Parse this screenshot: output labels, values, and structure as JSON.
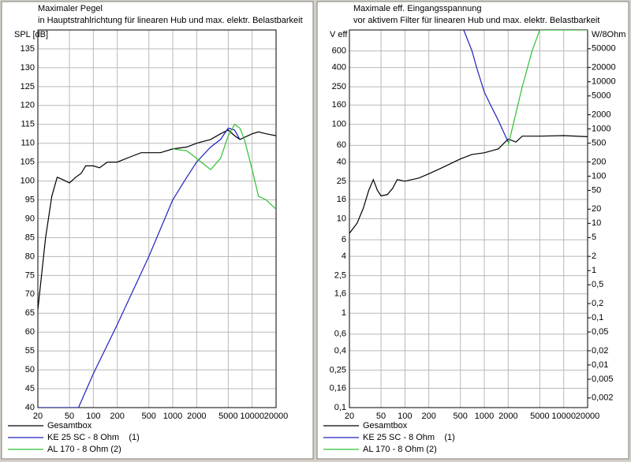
{
  "chart_data": [
    {
      "type": "line",
      "title": "Maximaler Pegel",
      "subtitle": "in Hauptstrahlrichtung für linearen Hub und max. elektr. Belastbarkeit",
      "ylabel": "SPL [dB]",
      "xscale": "log",
      "yscale": "linear",
      "grid": true,
      "xlim": [
        20,
        20000
      ],
      "xticks": [
        20,
        50,
        100,
        200,
        500,
        1000,
        2000,
        5000,
        10000,
        20000
      ],
      "ylim": [
        40,
        140
      ],
      "yticks": [
        40,
        45,
        50,
        55,
        60,
        65,
        70,
        75,
        80,
        85,
        90,
        95,
        100,
        105,
        110,
        115,
        120,
        125,
        130,
        135
      ],
      "series": [
        {
          "name": "Gesamtbox",
          "color": "#000000",
          "x": [
            20,
            25,
            30,
            35,
            40,
            50,
            60,
            70,
            80,
            100,
            120,
            150,
            200,
            300,
            400,
            500,
            700,
            1000,
            1500,
            2000,
            3000,
            4000,
            5000,
            6000,
            7000,
            10000,
            12000,
            15000,
            20000
          ],
          "values": [
            66,
            85,
            96,
            101,
            100.5,
            99.5,
            101,
            102,
            104,
            104,
            103.5,
            105,
            105,
            106.5,
            107.5,
            107.5,
            107.5,
            108.5,
            109,
            110,
            111,
            112.5,
            113.5,
            112,
            111,
            112.5,
            113,
            112.5,
            112
          ]
        },
        {
          "name": "KE 25 SC - 8 Ohm    (1)",
          "color": "#2020c0",
          "x": [
            20,
            65,
            100,
            200,
            500,
            1000,
            1500,
            2000,
            3000,
            4000,
            5000,
            6000,
            7000
          ],
          "values": [
            40,
            40,
            49,
            62,
            80,
            95,
            101,
            105,
            109,
            111,
            114,
            113.5,
            111
          ]
        },
        {
          "name": "AL 170 - 8 Ohm (2)",
          "color": "#30c030",
          "x": [
            1000,
            1500,
            2000,
            3000,
            4000,
            5000,
            6000,
            7000,
            8000,
            10000,
            12000,
            15000,
            20000
          ],
          "values": [
            108.5,
            108,
            106,
            103,
            106,
            112,
            115,
            114,
            111,
            103,
            96,
            95,
            92.5
          ]
        }
      ]
    },
    {
      "type": "line",
      "title": "Maximale eff. Eingangsspannung",
      "subtitle": "vor aktivem Filter für linearen Hub und max. elektr. Belastbarkeit",
      "ylabel": "V eff",
      "y2label": "W/8Ohm",
      "xscale": "log",
      "yscale": "log",
      "grid": true,
      "xlim": [
        20,
        20000
      ],
      "xticks": [
        20,
        50,
        100,
        200,
        500,
        1000,
        2000,
        5000,
        10000,
        20000
      ],
      "ylim": [
        0.1,
        1000
      ],
      "yticks": [
        {
          "value": 0.1,
          "label": "0,1"
        },
        {
          "value": 0.16,
          "label": "0,16"
        },
        {
          "value": 0.25,
          "label": "0,25"
        },
        {
          "value": 0.4,
          "label": "0,4"
        },
        {
          "value": 0.6,
          "label": "0,6"
        },
        1,
        {
          "value": 1.6,
          "label": "1,6"
        },
        {
          "value": 2.5,
          "label": "2,5"
        },
        4,
        6,
        10,
        16,
        25,
        40,
        60,
        100,
        160,
        250,
        400,
        600
      ],
      "y2lim": [
        0.00125,
        125000
      ],
      "y2ticks": [
        {
          "value": 0.002,
          "label": "0,002"
        },
        {
          "value": 0.005,
          "label": "0,005"
        },
        {
          "value": 0.01,
          "label": "0,01"
        },
        {
          "value": 0.02,
          "label": "0,02"
        },
        {
          "value": 0.05,
          "label": "0,05"
        },
        {
          "value": 0.1,
          "label": "0,1"
        },
        {
          "value": 0.2,
          "label": "0,2"
        },
        {
          "value": 0.5,
          "label": "0,5"
        },
        1,
        2,
        5,
        10,
        20,
        50,
        100,
        200,
        500,
        1000,
        2000,
        5000,
        10000,
        20000,
        50000
      ],
      "series": [
        {
          "name": "Gesamtbox",
          "color": "#000000",
          "x": [
            20,
            25,
            30,
            35,
            40,
            45,
            50,
            60,
            70,
            80,
            100,
            150,
            200,
            300,
            500,
            700,
            1000,
            1500,
            2000,
            2500,
            3000,
            5000,
            10000,
            20000
          ],
          "values": [
            7,
            9,
            13,
            20,
            26,
            20,
            17.5,
            18,
            21,
            26,
            25,
            27,
            30,
            35,
            43,
            48,
            50,
            55,
            70,
            65,
            75,
            75,
            76,
            74
          ]
        },
        {
          "name": "KE 25 SC - 8 Ohm    (1)",
          "color": "#2020c0",
          "x": [
            550,
            700,
            800,
            1000,
            1200,
            1500,
            2000
          ],
          "values": [
            1000,
            600,
            400,
            220,
            160,
            110,
            65
          ]
        },
        {
          "name": "AL 170 - 8 Ohm (2)",
          "color": "#30c030",
          "x": [
            2000,
            3000,
            4000,
            5000,
            20000
          ],
          "values": [
            60,
            250,
            600,
            1000,
            1000
          ]
        }
      ]
    }
  ]
}
